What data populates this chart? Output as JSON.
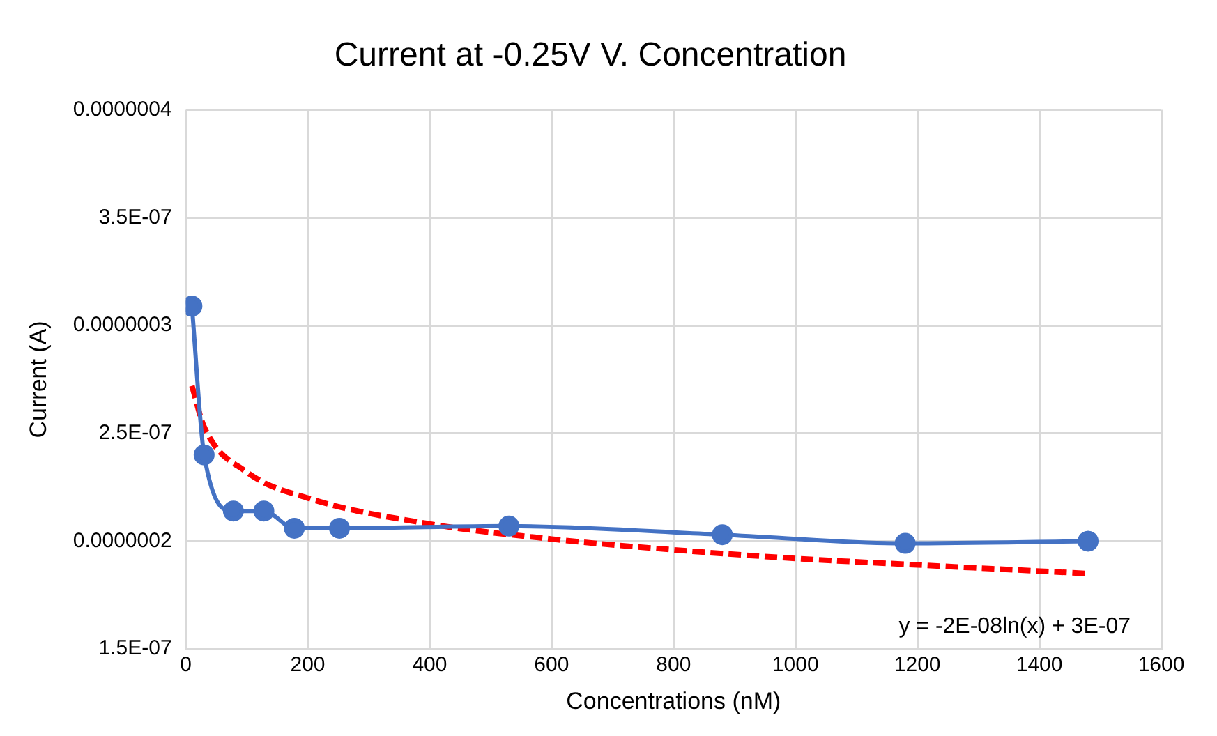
{
  "chart_data": {
    "type": "scatter",
    "title": "Current at -0.25V V. Concentration",
    "xlabel": "Concentrations (nM)",
    "ylabel": "Current (A)",
    "series": [
      {
        "type": "line",
        "color": "#4472c4",
        "marker": "circle",
        "line_style": "solid",
        "x": [
          10,
          30,
          78,
          128,
          178,
          252,
          530,
          880,
          1180,
          1480
        ],
        "values": [
          3.09e-07,
          2.4e-07,
          2.14e-07,
          2.14e-07,
          2.06e-07,
          2.06e-07,
          2.07e-07,
          2.03e-07,
          1.99e-07,
          2e-07
        ]
      },
      {
        "type": "line",
        "color": "#ff0000",
        "marker": "none",
        "line_style": "dashed",
        "x": [
          10,
          30,
          100,
          200,
          400,
          600,
          800,
          1000,
          1200,
          1480
        ],
        "values": [
          2.72e-07,
          2.53e-07,
          2.32e-07,
          2.2e-07,
          2.08e-07,
          2.01e-07,
          1.96e-07,
          1.92e-07,
          1.89e-07,
          1.85e-07
        ]
      }
    ],
    "xlim": [
      0,
      1600
    ],
    "xticks": [
      0,
      200,
      400,
      600,
      800,
      1000,
      1200,
      1400,
      1600
    ],
    "ylim": [
      1.5e-07,
      4e-07
    ],
    "yticks": [
      {
        "value": 1.5e-07,
        "label": "1.5E-07"
      },
      {
        "value": 2e-07,
        "label": "0.0000002"
      },
      {
        "value": 2.5e-07,
        "label": "2.5E-07"
      },
      {
        "value": 3e-07,
        "label": "0.0000003"
      },
      {
        "value": 3.5e-07,
        "label": "3.5E-07"
      },
      {
        "value": 4e-07,
        "label": "0.0000004"
      }
    ],
    "grid": true,
    "legend": false,
    "annotations": [
      "y = -2E-08ln(x) + 3E-07"
    ]
  }
}
